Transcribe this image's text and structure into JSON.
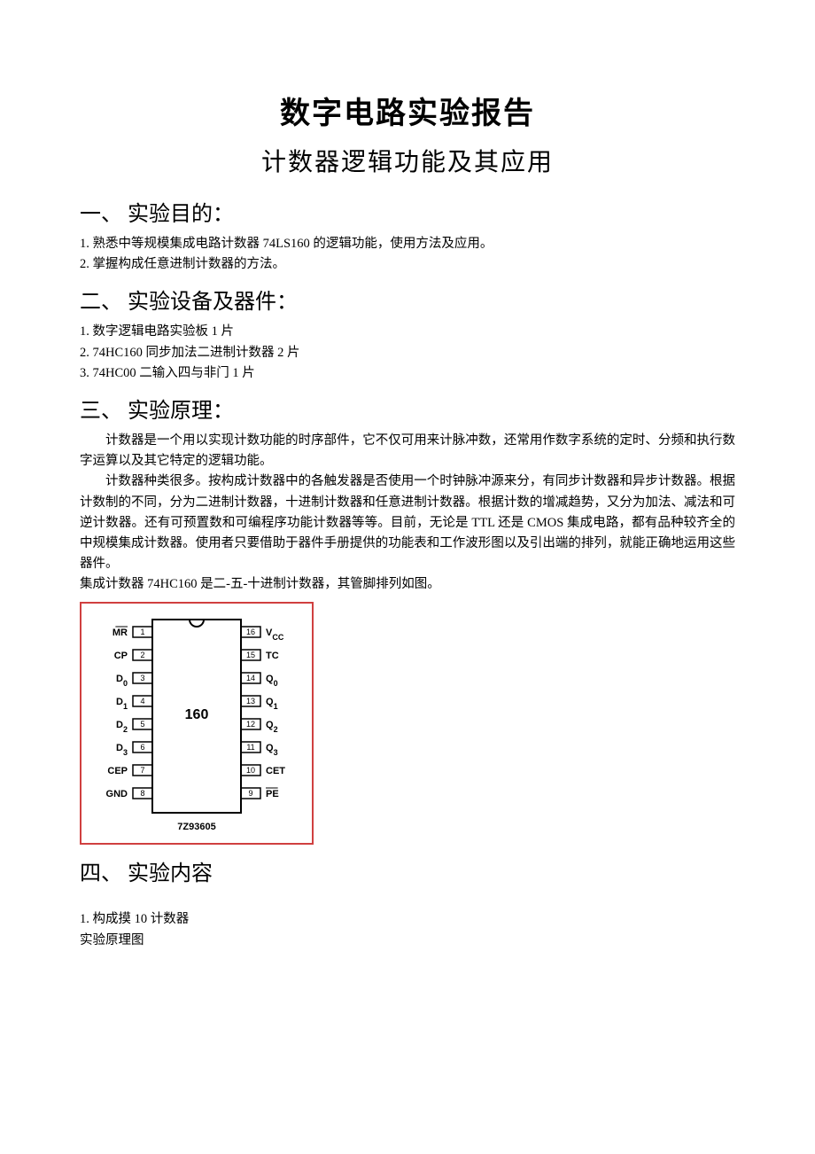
{
  "title": "数字电路实验报告",
  "subtitle": "计数器逻辑功能及其应用",
  "sections": {
    "s1": {
      "heading": "一、 实验目的：",
      "items": [
        "1.   熟悉中等规模集成电路计数器 74LS160 的逻辑功能，使用方法及应用。",
        "2.   掌握构成任意进制计数器的方法。"
      ]
    },
    "s2": {
      "heading": "二、 实验设备及器件：",
      "items": [
        "1.   数字逻辑电路实验板          1 片",
        "2.   74HC160 同步加法二进制计数器              2 片",
        "3.   74HC00 二输入四与非门          1 片"
      ]
    },
    "s3": {
      "heading": "三、 实验原理：",
      "paragraphs": [
        "计数器是一个用以实现计数功能的时序部件，它不仅可用来计脉冲数，还常用作数字系统的定时、分频和执行数字运算以及其它特定的逻辑功能。",
        "计数器种类很多。按构成计数器中的各触发器是否使用一个时钟脉冲源来分，有同步计数器和异步计数器。根据计数制的不同，分为二进制计数器，十进制计数器和任意进制计数器。根据计数的增减趋势，又分为加法、减法和可逆计数器。还有可预置数和可编程序功能计数器等等。目前，无论是 TTL 还是 CMOS 集成电路，都有品种较齐全的中规模集成计数器。使用者只要借助于器件手册提供的功能表和工作波形图以及引出端的排列，就能正确地运用这些器件。"
      ],
      "note": "集成计数器 74HC160 是二-五-十进制计数器，其管脚排列如图。"
    },
    "s4": {
      "heading": "四、 实验内容",
      "items": [
        "1.   构成摸 10 计数器",
        "实验原理图"
      ]
    }
  },
  "chip": {
    "name": "160",
    "bottom_label": "7Z93605",
    "border_color": "#d04040",
    "pin_box_stroke": "#000000",
    "body_stroke": "#000000",
    "text_color": "#000000",
    "font_size": 11,
    "left_pins": [
      {
        "num": "1",
        "label": "MR",
        "overline": true
      },
      {
        "num": "2",
        "label": "CP",
        "overline": false
      },
      {
        "num": "3",
        "label": "D0",
        "sub": "0",
        "overline": false
      },
      {
        "num": "4",
        "label": "D1",
        "sub": "1",
        "overline": false
      },
      {
        "num": "5",
        "label": "D2",
        "sub": "2",
        "overline": false
      },
      {
        "num": "6",
        "label": "D3",
        "sub": "3",
        "overline": false
      },
      {
        "num": "7",
        "label": "CEP",
        "overline": false
      },
      {
        "num": "8",
        "label": "GND",
        "overline": false
      }
    ],
    "right_pins": [
      {
        "num": "16",
        "label": "VCC",
        "sub": "CC",
        "overline": false
      },
      {
        "num": "15",
        "label": "TC",
        "overline": false
      },
      {
        "num": "14",
        "label": "Q0",
        "sub": "0",
        "overline": false
      },
      {
        "num": "13",
        "label": "Q1",
        "sub": "1",
        "overline": false
      },
      {
        "num": "12",
        "label": "Q2",
        "sub": "2",
        "overline": false
      },
      {
        "num": "11",
        "label": "Q3",
        "sub": "3",
        "overline": false
      },
      {
        "num": "10",
        "label": "CET",
        "overline": false
      },
      {
        "num": "9",
        "label": "PE",
        "overline": true
      }
    ]
  }
}
